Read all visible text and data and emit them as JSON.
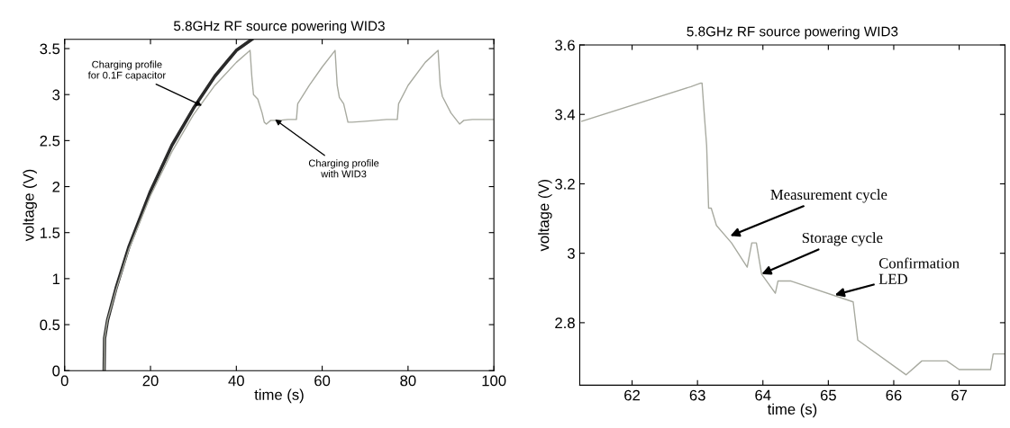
{
  "chart_data": [
    {
      "type": "line",
      "title": "5.8GHz RF source powering WID3",
      "xlabel": "time (s)",
      "ylabel": "voltage (V)",
      "xlim": [
        0,
        100
      ],
      "ylim": [
        0,
        3.6
      ],
      "xticks": [
        0,
        20,
        40,
        60,
        80,
        100
      ],
      "yticks": [
        0,
        0.5,
        1,
        1.5,
        2,
        2.5,
        3,
        3.5
      ],
      "grid": false,
      "legend": false,
      "series": [
        {
          "color": "#2a2a2a",
          "x": [
            9.2,
            9.3,
            10,
            12,
            15,
            20,
            25,
            30,
            35,
            40,
            43.6
          ],
          "values": [
            0,
            0.35,
            0.55,
            0.9,
            1.35,
            1.95,
            2.45,
            2.85,
            3.2,
            3.48,
            3.6
          ]
        },
        {
          "color": "#a8aaa0",
          "x": [
            9.2,
            9.3,
            10,
            12,
            15,
            20,
            25,
            30,
            35,
            40,
            43.2,
            43.6,
            44,
            45,
            46,
            46.5,
            47,
            48,
            50,
            52,
            54,
            54.3,
            57,
            60,
            63,
            63.5,
            64,
            65,
            66,
            67,
            70,
            75,
            77.5,
            77.8,
            80,
            84,
            87,
            87.5,
            88,
            90,
            92,
            93,
            95,
            100
          ],
          "values": [
            0,
            0.35,
            0.55,
            0.88,
            1.32,
            1.9,
            2.38,
            2.78,
            3.1,
            3.35,
            3.48,
            3.2,
            3.0,
            2.95,
            2.8,
            2.7,
            2.68,
            2.72,
            2.72,
            2.73,
            2.73,
            2.9,
            3.1,
            3.3,
            3.48,
            3.1,
            2.97,
            2.9,
            2.7,
            2.7,
            2.71,
            2.73,
            2.73,
            2.9,
            3.1,
            3.35,
            3.48,
            3.1,
            2.98,
            2.8,
            2.68,
            2.72,
            2.73,
            2.73
          ]
        }
      ],
      "annotations": [
        {
          "text": "Charging profile\nfor 0.1F capacitor",
          "x": 32,
          "y": 2.88
        },
        {
          "text": "Charging profile\nwith WID3",
          "x": 49,
          "y": 2.73
        }
      ]
    },
    {
      "type": "line",
      "title": "5.8GHz RF source powering WID3",
      "xlabel": "time (s)",
      "ylabel": "voltage (V)",
      "xlim": [
        61.2,
        67.7
      ],
      "ylim": [
        2.62,
        3.6
      ],
      "xticks": [
        62,
        63,
        64,
        65,
        66,
        67
      ],
      "yticks": [
        2.8,
        3,
        3.2,
        3.4,
        3.6
      ],
      "grid": false,
      "legend": false,
      "series": [
        {
          "color": "#a8aaa0",
          "x": [
            61.23,
            62.9,
            63.05,
            63.07,
            63.1,
            63.14,
            63.17,
            63.21,
            63.29,
            63.52,
            63.76,
            63.83,
            63.9,
            63.98,
            64.19,
            64.23,
            64.43,
            65.38,
            65.45,
            66.19,
            66.43,
            66.81,
            67.0,
            67.48,
            67.52,
            67.7
          ],
          "values": [
            3.38,
            3.48,
            3.49,
            3.49,
            3.41,
            3.31,
            3.13,
            3.13,
            3.08,
            3.03,
            2.96,
            3.03,
            3.03,
            2.94,
            2.885,
            2.92,
            2.92,
            2.86,
            2.75,
            2.65,
            2.69,
            2.69,
            2.665,
            2.665,
            2.71,
            2.71
          ]
        }
      ],
      "annotations": [
        {
          "text": "Measurement cycle",
          "x": 63.5,
          "y": 3.05
        },
        {
          "text": "Storage cycle",
          "x": 63.98,
          "y": 2.94
        },
        {
          "text": "Confirmation\nLED",
          "x": 65.1,
          "y": 2.88
        }
      ]
    }
  ]
}
